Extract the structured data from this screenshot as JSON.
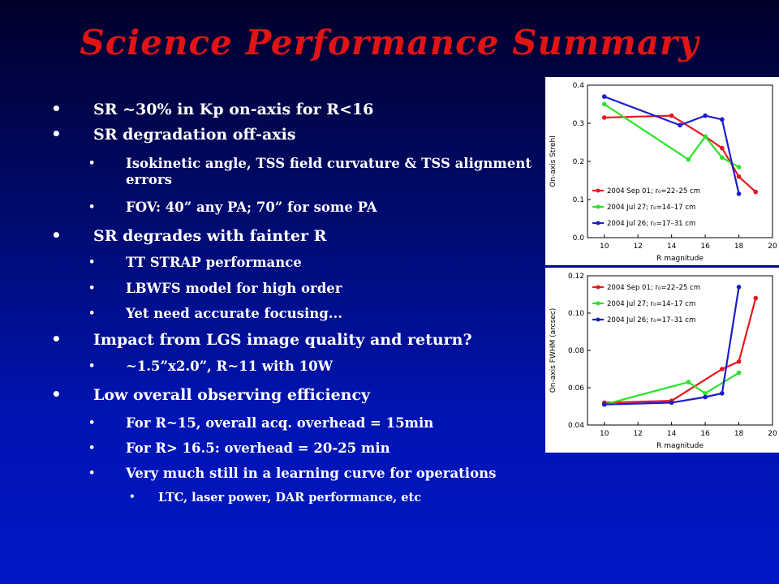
{
  "slide": {
    "title": "Science Performance Summary",
    "colors": {
      "title": "#e01414",
      "text": "#ffffff",
      "background_top": "#00002a",
      "background_bottom": "#0018c8"
    },
    "bullets": [
      {
        "level": 1,
        "text": "SR ~30% in Kp on-axis for R<16"
      },
      {
        "level": 1,
        "text": "SR degradation off-axis"
      },
      {
        "level": 2,
        "text": "Isokinetic angle, TSS field curvature & TSS alignment errors"
      },
      {
        "level": 2,
        "text": "FOV: 40” any PA; 70” for some PA"
      },
      {
        "level": 1,
        "text": "SR degrades with fainter R"
      },
      {
        "level": 2,
        "text": "TT STRAP performance"
      },
      {
        "level": 2,
        "text": "LBWFS model for high order"
      },
      {
        "level": 2,
        "text": "Yet need accurate focusing..."
      },
      {
        "level": 1,
        "text": "Impact from LGS image quality and return?"
      },
      {
        "level": 2,
        "text": "~1.5”x2.0”,   R~11 with 10W"
      },
      {
        "level": 1,
        "text": "Low overall observing efficiency"
      },
      {
        "level": 2,
        "text": "For R~15, overall acq. overhead = 15min"
      },
      {
        "level": 2,
        "text": "For R> 16.5: overhead = 20-25 min"
      },
      {
        "level": 2,
        "text": "Very much still in a learning curve for operations"
      },
      {
        "level": 3,
        "text": "LTC, laser power, DAR performance, etc"
      }
    ]
  },
  "chart_data": [
    {
      "type": "line",
      "xlabel": "R magnitude",
      "ylabel": "On-axis Strehl",
      "xlim": [
        9,
        20
      ],
      "ylim": [
        0.0,
        0.4
      ],
      "xticks": [
        "10",
        "12",
        "14",
        "16",
        "18",
        "20"
      ],
      "yticks": [
        "0.0",
        "0.1",
        "0.2",
        "0.3",
        "0.4"
      ],
      "legend": "bottom-left",
      "series": [
        {
          "name": "2004 Sep 01; r₀=22–25 cm",
          "color": "#e8181e",
          "x": [
            10,
            14,
            16,
            17,
            18,
            19
          ],
          "y": [
            0.315,
            0.32,
            0.265,
            0.235,
            0.16,
            0.12
          ]
        },
        {
          "name": "2004 Jul 27; r₀=14–17 cm",
          "color": "#28e428",
          "x": [
            10,
            15,
            16,
            17,
            18
          ],
          "y": [
            0.35,
            0.205,
            0.265,
            0.21,
            0.185
          ]
        },
        {
          "name": "2004 Jul 26; r₀=17–31 cm",
          "color": "#1c1ccc",
          "x": [
            10,
            14.5,
            16,
            17,
            18
          ],
          "y": [
            0.37,
            0.295,
            0.32,
            0.31,
            0.115
          ]
        }
      ]
    },
    {
      "type": "line",
      "xlabel": "R magnitude",
      "ylabel": "On-axis FWHM (arcsec)",
      "xlim": [
        9,
        20
      ],
      "ylim": [
        0.04,
        0.12
      ],
      "xticks": [
        "10",
        "12",
        "14",
        "16",
        "18",
        "20"
      ],
      "yticks": [
        "0.04",
        "0.06",
        "0.08",
        "0.10",
        "0.12"
      ],
      "legend": "top-left",
      "series": [
        {
          "name": "2004 Sep 01; r₀=22–25 cm",
          "color": "#e8181e",
          "x": [
            10,
            14,
            17,
            18,
            19
          ],
          "y": [
            0.052,
            0.053,
            0.07,
            0.074,
            0.108
          ]
        },
        {
          "name": "2004 Jul 27; r₀=14–17 cm",
          "color": "#28e428",
          "x": [
            10,
            15,
            16,
            18
          ],
          "y": [
            0.051,
            0.063,
            0.057,
            0.068
          ]
        },
        {
          "name": "2004 Jul 26; r₀=17–31 cm",
          "color": "#1c1ccc",
          "x": [
            10,
            14,
            16,
            17,
            18
          ],
          "y": [
            0.051,
            0.052,
            0.055,
            0.057,
            0.114
          ]
        }
      ]
    }
  ]
}
